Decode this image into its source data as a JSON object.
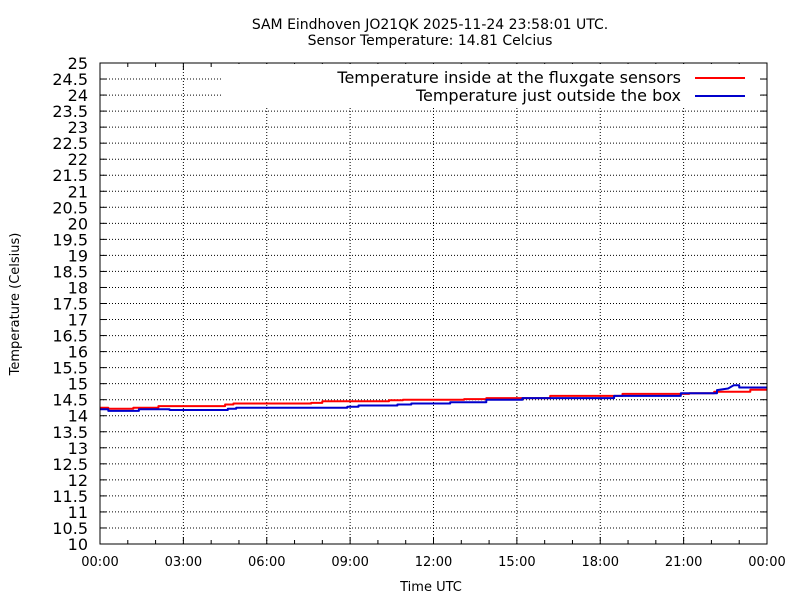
{
  "chart_data": {
    "type": "line",
    "title": "SAM Eindhoven JO21QK 2025-11-24 23:58:01 UTC.",
    "subtitle": "Sensor Temperature: 14.81 Celcius",
    "xlabel": "Time UTC",
    "ylabel": "Temperature (Celsius)",
    "xlim": [
      0,
      24
    ],
    "ylim": [
      10,
      25
    ],
    "x_ticks": [
      "00:00",
      "03:00",
      "06:00",
      "09:00",
      "12:00",
      "15:00",
      "18:00",
      "21:00",
      "00:00"
    ],
    "y_ticks": [
      "10",
      "10.5",
      "11",
      "11.5",
      "12",
      "12.5",
      "13",
      "13.5",
      "14",
      "14.5",
      "15",
      "15.5",
      "16",
      "16.5",
      "17",
      "17.5",
      "18",
      "18.5",
      "19",
      "19.5",
      "20",
      "20.5",
      "21",
      "21.5",
      "22",
      "22.5",
      "23",
      "23.5",
      "24",
      "24.5",
      "25"
    ],
    "grid": true,
    "legend_position": "top-right",
    "series": [
      {
        "name": "Temperature inside at the fluxgate sensors",
        "color": "#ff0000",
        "x": [
          0.0,
          0.3,
          0.3,
          1.2,
          1.2,
          2.1,
          2.1,
          4.5,
          4.5,
          4.8,
          4.8,
          7.6,
          7.6,
          8.0,
          8.0,
          10.4,
          10.4,
          10.9,
          10.9,
          13.1,
          13.1,
          13.9,
          13.9,
          16.2,
          16.2,
          18.8,
          18.8,
          21.2,
          21.2,
          22.1,
          22.1,
          23.4,
          23.4,
          24.0
        ],
        "y": [
          14.25,
          14.25,
          14.22,
          14.22,
          14.25,
          14.25,
          14.3,
          14.3,
          14.35,
          14.35,
          14.38,
          14.38,
          14.4,
          14.4,
          14.45,
          14.45,
          14.48,
          14.48,
          14.5,
          14.5,
          14.52,
          14.52,
          14.55,
          14.55,
          14.62,
          14.62,
          14.68,
          14.68,
          14.7,
          14.7,
          14.75,
          14.75,
          14.81,
          14.81
        ]
      },
      {
        "name": "Temperature just outside the box",
        "color": "#0000cc",
        "x": [
          0.0,
          0.3,
          0.3,
          1.4,
          1.4,
          2.5,
          2.5,
          4.6,
          4.6,
          4.9,
          4.9,
          8.9,
          8.9,
          9.3,
          9.3,
          10.7,
          10.7,
          11.2,
          11.2,
          12.6,
          12.6,
          13.9,
          13.9,
          15.2,
          15.2,
          18.5,
          18.5,
          20.9,
          20.9,
          22.2,
          22.2,
          22.6,
          22.8,
          23.0,
          23.0,
          24.0
        ],
        "y": [
          14.2,
          14.2,
          14.15,
          14.15,
          14.2,
          14.2,
          14.18,
          14.18,
          14.22,
          14.22,
          14.25,
          14.25,
          14.28,
          14.28,
          14.32,
          14.32,
          14.35,
          14.35,
          14.38,
          14.38,
          14.42,
          14.42,
          14.5,
          14.5,
          14.55,
          14.55,
          14.62,
          14.62,
          14.7,
          14.7,
          14.8,
          14.85,
          14.95,
          14.95,
          14.88,
          14.88
        ]
      }
    ]
  }
}
